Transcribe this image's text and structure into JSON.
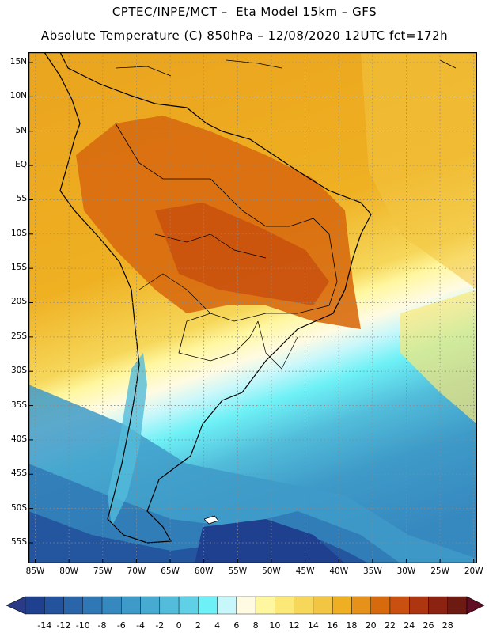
{
  "header": {
    "title_line1": "CPTEC/INPE/MCT –  Eta Model 15km – GFS",
    "title_line2": "Absolute Temperature (C) 850hPa – 12/08/2020 12UTC fct=172h"
  },
  "map": {
    "variable": "Absolute Temperature (C) 850hPa",
    "lat_labels": [
      "15N",
      "10N",
      "5N",
      "EQ",
      "5S",
      "10S",
      "15S",
      "20S",
      "25S",
      "30S",
      "35S",
      "40S",
      "45S",
      "50S",
      "55S"
    ],
    "lat_values": [
      15,
      10,
      5,
      0,
      -5,
      -10,
      -15,
      -20,
      -25,
      -30,
      -35,
      -40,
      -45,
      -50,
      -55
    ],
    "lon_labels": [
      "85W",
      "80W",
      "75W",
      "70W",
      "65W",
      "60W",
      "55W",
      "50W",
      "45W",
      "40W",
      "35W",
      "30W",
      "25W",
      "20W"
    ],
    "lon_values": [
      -85,
      -80,
      -75,
      -70,
      -65,
      -60,
      -55,
      -50,
      -45,
      -40,
      -35,
      -30,
      -25,
      -20
    ],
    "lat_range": [
      -58,
      16.5
    ],
    "lon_range": [
      -86,
      -19.5
    ],
    "grid": true,
    "grid_style": "dotted"
  },
  "colorbar": {
    "labels": [
      "-14",
      "-12",
      "-10",
      "-8",
      "-6",
      "-4",
      "-2",
      "0",
      "2",
      "4",
      "6",
      "8",
      "10",
      "12",
      "14",
      "16",
      "18",
      "20",
      "22",
      "24",
      "26",
      "28"
    ],
    "colors": [
      "#1f3f8f",
      "#24529d",
      "#2a65aa",
      "#2f78b5",
      "#3689bf",
      "#3e9ac8",
      "#47abd1",
      "#52bcda",
      "#5fd0e6",
      "#6ef1f6",
      "#c8f7fb",
      "#fffbe3",
      "#fff7a0",
      "#fbe876",
      "#f6d75a",
      "#f2c542",
      "#eeb022",
      "#e6911a",
      "#d86a0e",
      "#c9500e",
      "#ad3510",
      "#8c2211",
      "#6d1a12"
    ],
    "under_color": "#2a3a86",
    "over_color": "#600f24"
  }
}
